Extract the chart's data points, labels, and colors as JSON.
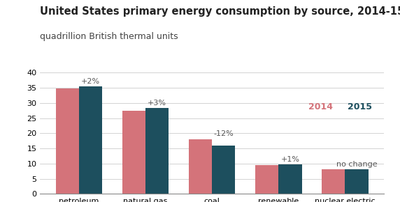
{
  "title": "United States primary energy consumption by source, 2014-15",
  "subtitle": "quadrillion British thermal units",
  "categories": [
    "petroleum",
    "natural gas",
    "coal",
    "renewable\nenergy",
    "nuclear electric\npower"
  ],
  "values_2014": [
    34.8,
    27.5,
    18.1,
    9.6,
    8.1
  ],
  "values_2015": [
    35.5,
    28.3,
    15.9,
    9.7,
    8.1
  ],
  "annotations": [
    "+2%",
    "+3%",
    "-12%",
    "+1%",
    "no change"
  ],
  "color_2014": "#d4737a",
  "color_2015": "#1d4f5e",
  "bar_width": 0.35,
  "ylim": [
    0,
    40
  ],
  "yticks": [
    0,
    5,
    10,
    15,
    20,
    25,
    30,
    35,
    40
  ],
  "legend_2014_color": "#d4737a",
  "legend_2015_color": "#1d4f5e",
  "background_color": "#ffffff",
  "title_fontsize": 10.5,
  "subtitle_fontsize": 9.0,
  "tick_fontsize": 8.0,
  "annotation_fontsize": 8.0,
  "annotation_color": "#555555"
}
